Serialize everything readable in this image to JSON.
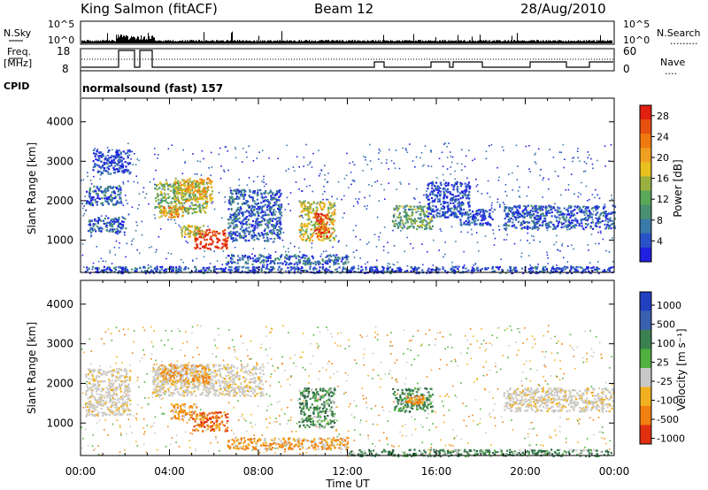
{
  "header": {
    "station": "King Salmon (fitACF)",
    "beam": "Beam 12",
    "date": "28/Aug/2010"
  },
  "top_panels": {
    "nsky_label": "N.Sky",
    "nsky_ticks": [
      "10^5",
      "10^0"
    ],
    "nsearch_label": "N.Search",
    "freq_label": "Freq.",
    "freq_unit": "[MHz]",
    "freq_ticks": [
      "18",
      "8"
    ],
    "nave_label": "Nave",
    "nave_ticks": [
      "60",
      "0"
    ],
    "cpid_label": "CPID",
    "cpid_text": "normalsound (fast) 157"
  },
  "chart_data": [
    {
      "type": "heatmap",
      "name": "power-panel",
      "ylabel": "Slant Range [km]",
      "xlabel": "Time UT",
      "y_ticks": [
        1000,
        2000,
        3000,
        4000
      ],
      "ylim": [
        180,
        4600
      ],
      "x_ticks": [
        "00:00",
        "04:00",
        "08:00",
        "12:00",
        "16:00",
        "20:00",
        "00:00"
      ],
      "xlim_hours": [
        0,
        24
      ],
      "colorbar": {
        "label": "Power [dB]",
        "ticks": [
          "4",
          "8",
          "12",
          "16",
          "20",
          "24",
          "28"
        ],
        "range": [
          0,
          30
        ],
        "colors": [
          "#2020e0",
          "#2a52c8",
          "#3a7aa8",
          "#4a9070",
          "#5aa85a",
          "#9ab040",
          "#e8c020",
          "#f0a020",
          "#f07a10",
          "#e85010",
          "#e02010"
        ]
      },
      "regions": [
        {
          "t0": 0.2,
          "t1": 1.8,
          "r0": 1900,
          "r1": 2400,
          "level": 0.18
        },
        {
          "t0": 0.3,
          "t1": 2.0,
          "r0": 1200,
          "r1": 1600,
          "level": 0.15
        },
        {
          "t0": 0.5,
          "t1": 2.2,
          "r0": 2700,
          "r1": 3300,
          "level": 0.1
        },
        {
          "t0": 3.3,
          "t1": 5.7,
          "r0": 1700,
          "r1": 2500,
          "level": 0.45
        },
        {
          "t0": 4.2,
          "t1": 5.9,
          "r0": 2000,
          "r1": 2600,
          "level": 0.65
        },
        {
          "t0": 3.5,
          "t1": 4.6,
          "r0": 1600,
          "r1": 1900,
          "level": 0.7
        },
        {
          "t0": 5.1,
          "t1": 6.6,
          "r0": 800,
          "r1": 1300,
          "level": 0.95
        },
        {
          "t0": 4.5,
          "t1": 5.5,
          "r0": 1100,
          "r1": 1400,
          "level": 0.55
        },
        {
          "t0": 6.6,
          "t1": 9.0,
          "r0": 1000,
          "r1": 2300,
          "level": 0.18
        },
        {
          "t0": 9.8,
          "t1": 11.4,
          "r0": 1000,
          "r1": 2000,
          "level": 0.55
        },
        {
          "t0": 10.5,
          "t1": 11.2,
          "r0": 1100,
          "r1": 1700,
          "level": 0.9
        },
        {
          "t0": 14.0,
          "t1": 15.8,
          "r0": 1300,
          "r1": 1900,
          "level": 0.4
        },
        {
          "t0": 15.5,
          "t1": 17.5,
          "r0": 1600,
          "r1": 2500,
          "level": 0.12
        },
        {
          "t0": 19.0,
          "t1": 24.0,
          "r0": 1300,
          "r1": 1900,
          "level": 0.15
        },
        {
          "t0": 17.0,
          "t1": 18.5,
          "r0": 1400,
          "r1": 1800,
          "level": 0.12
        },
        {
          "t0": 0.0,
          "t1": 24.0,
          "r0": 180,
          "r1": 350,
          "level": 0.12
        },
        {
          "t0": 6.5,
          "t1": 12.0,
          "r0": 400,
          "r1": 650,
          "level": 0.18
        }
      ]
    },
    {
      "type": "heatmap",
      "name": "velocity-panel",
      "ylabel": "Slant Range [km]",
      "xlabel": "Time UT",
      "y_ticks": [
        1000,
        2000,
        3000,
        4000
      ],
      "ylim": [
        180,
        4600
      ],
      "x_ticks": [
        "00:00",
        "04:00",
        "08:00",
        "12:00",
        "16:00",
        "20:00",
        "00:00"
      ],
      "xlim_hours": [
        0,
        24
      ],
      "colorbar": {
        "label": "Velocity [m s⁻¹]",
        "ticks": [
          "1000",
          "500",
          "100",
          "25",
          "-25",
          "-100",
          "-500",
          "-1000"
        ],
        "colors": [
          "#2040c0",
          "#3a60b0",
          "#3a8050",
          "#50b040",
          "#c8c8c8",
          "#f0b020",
          "#f08010",
          "#e03010"
        ]
      },
      "regions": [
        {
          "t0": 0.2,
          "t1": 2.2,
          "r0": 1200,
          "r1": 2400,
          "vel": -15,
          "kind": "gray"
        },
        {
          "t0": 3.2,
          "t1": 8.2,
          "r0": 1700,
          "r1": 2500,
          "vel": -20,
          "kind": "gray"
        },
        {
          "t0": 3.6,
          "t1": 5.8,
          "r0": 2000,
          "r1": 2500,
          "vel": -120,
          "kind": "orange"
        },
        {
          "t0": 5.0,
          "t1": 6.6,
          "r0": 800,
          "r1": 1300,
          "vel": -700,
          "kind": "red"
        },
        {
          "t0": 4.0,
          "t1": 5.2,
          "r0": 1100,
          "r1": 1500,
          "vel": -400,
          "kind": "orange"
        },
        {
          "t0": 9.8,
          "t1": 11.4,
          "r0": 900,
          "r1": 1900,
          "vel": 300,
          "kind": "green"
        },
        {
          "t0": 14.0,
          "t1": 15.8,
          "r0": 1300,
          "r1": 1900,
          "vel": 300,
          "kind": "green"
        },
        {
          "t0": 14.6,
          "t1": 15.4,
          "r0": 1500,
          "r1": 1700,
          "vel": -200,
          "kind": "orange"
        },
        {
          "t0": 19.0,
          "t1": 24.0,
          "r0": 1300,
          "r1": 1900,
          "vel": -10,
          "kind": "gray"
        },
        {
          "t0": 6.5,
          "t1": 12.0,
          "r0": 350,
          "r1": 650,
          "vel": -150,
          "kind": "orange"
        },
        {
          "t0": 12.0,
          "t1": 24.0,
          "r0": 180,
          "r1": 350,
          "vel": 50,
          "kind": "green"
        }
      ]
    }
  ]
}
